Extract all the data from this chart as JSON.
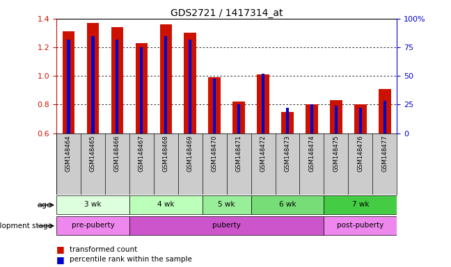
{
  "title": "GDS2721 / 1417314_at",
  "samples": [
    "GSM148464",
    "GSM148465",
    "GSM148466",
    "GSM148467",
    "GSM148468",
    "GSM148469",
    "GSM148470",
    "GSM148471",
    "GSM148472",
    "GSM148473",
    "GSM148474",
    "GSM148475",
    "GSM148476",
    "GSM148477"
  ],
  "transformed_count": [
    1.31,
    1.37,
    1.34,
    1.23,
    1.36,
    1.3,
    0.99,
    0.82,
    1.01,
    0.75,
    0.8,
    0.83,
    0.8,
    0.91
  ],
  "percentile_rank": [
    82,
    85,
    82,
    75,
    85,
    82,
    48,
    25,
    52,
    22,
    25,
    24,
    22,
    28
  ],
  "y_min": 0.6,
  "y_max": 1.4,
  "y_ticks": [
    0.6,
    0.8,
    1.0,
    1.2,
    1.4
  ],
  "right_y_ticks": [
    0,
    25,
    50,
    75,
    100
  ],
  "right_y_labels": [
    "0",
    "25",
    "50",
    "75",
    "100%"
  ],
  "bar_color": "#CC1100",
  "blue_color": "#0000CC",
  "age_groups": [
    {
      "label": "3 wk",
      "start": 0,
      "end": 2
    },
    {
      "label": "4 wk",
      "start": 3,
      "end": 5
    },
    {
      "label": "5 wk",
      "start": 6,
      "end": 7
    },
    {
      "label": "6 wk",
      "start": 8,
      "end": 10
    },
    {
      "label": "7 wk",
      "start": 11,
      "end": 13
    }
  ],
  "age_colors": [
    "#DDFFDD",
    "#BBFFBB",
    "#99EE99",
    "#77DD77",
    "#44CC44"
  ],
  "dev_groups": [
    {
      "label": "pre-puberty",
      "start": 0,
      "end": 2
    },
    {
      "label": "puberty",
      "start": 3,
      "end": 10
    },
    {
      "label": "post-puberty",
      "start": 11,
      "end": 13
    }
  ],
  "dev_colors": [
    "#EE88EE",
    "#CC55CC",
    "#EE88EE"
  ],
  "background_sample": "#CCCCCC"
}
